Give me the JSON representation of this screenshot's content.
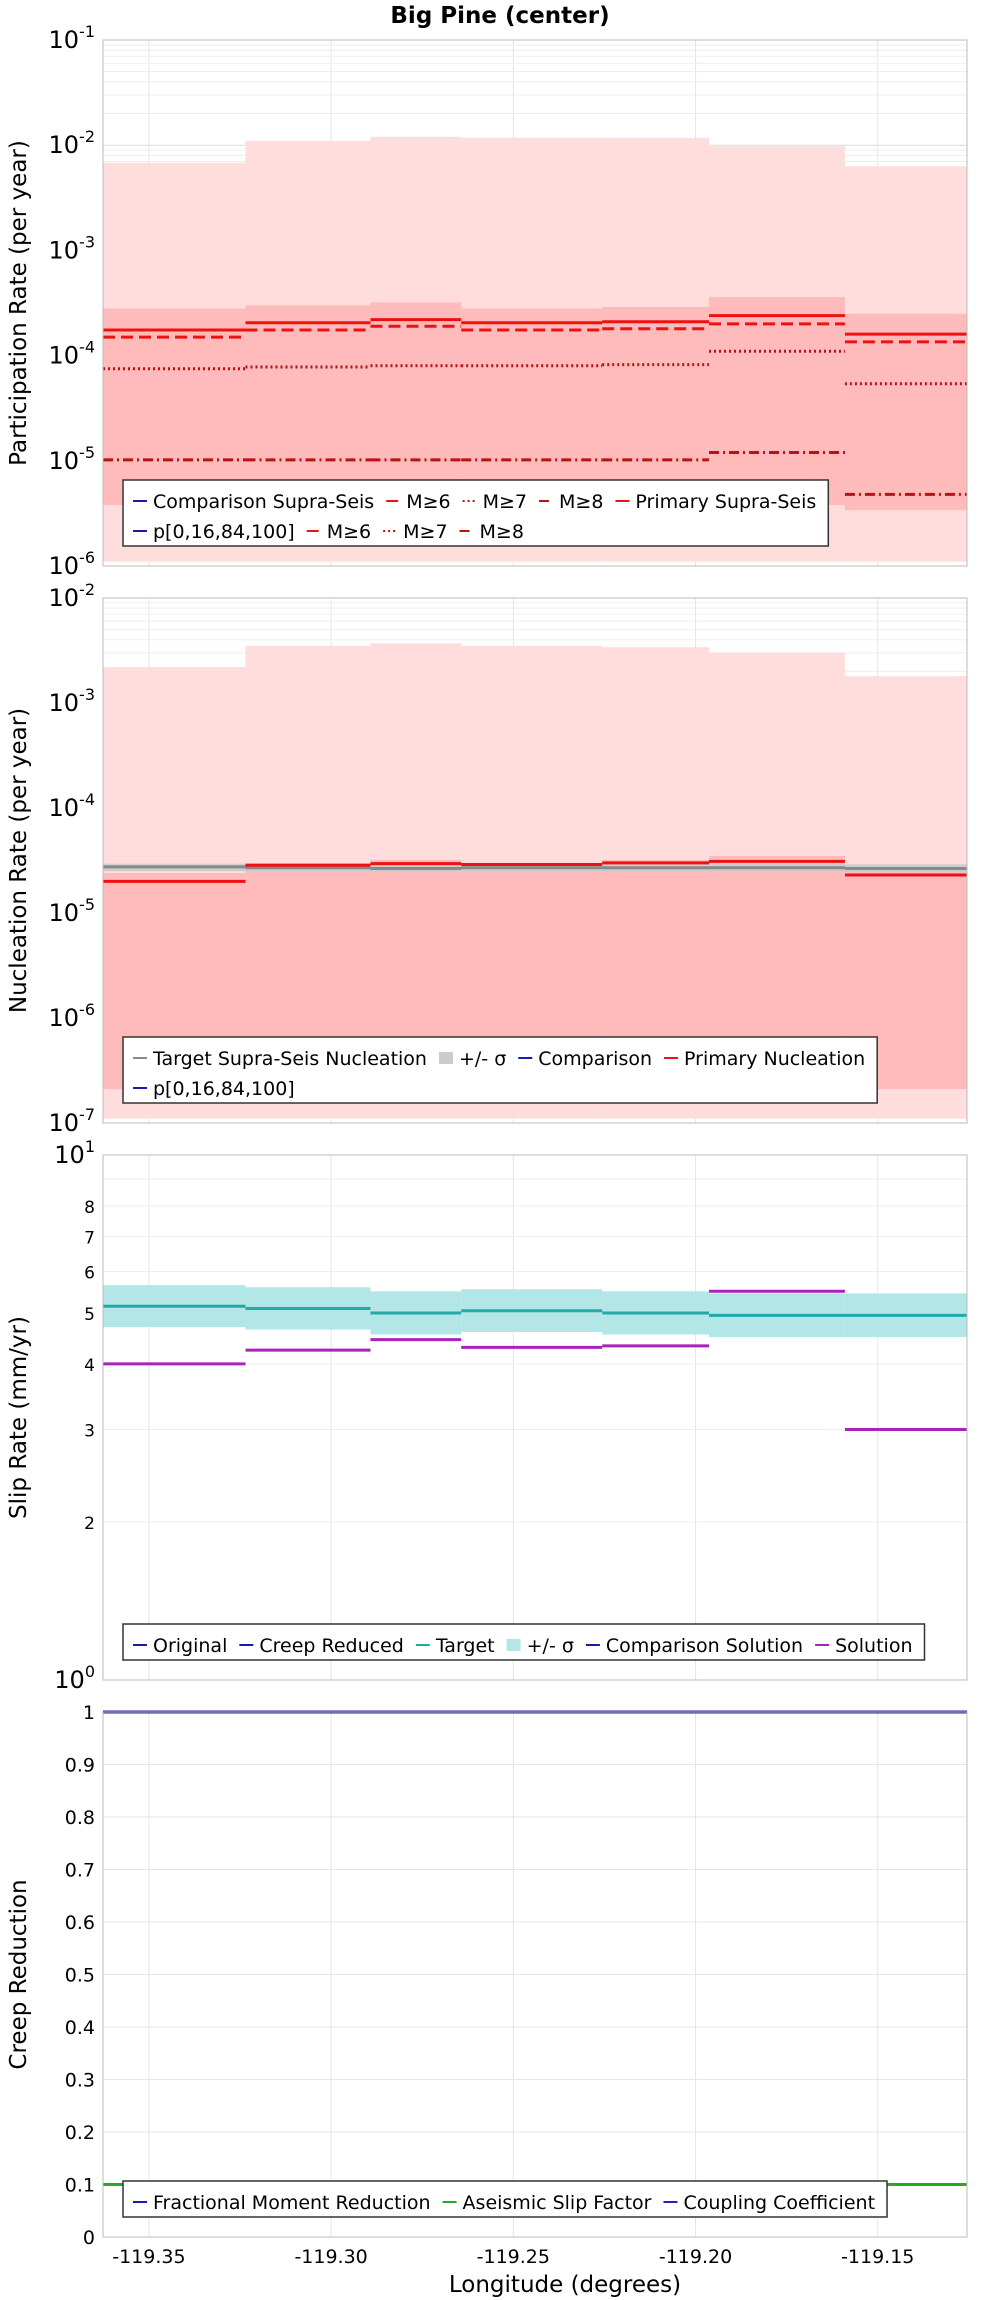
{
  "chart_data": [
    {
      "type": "line",
      "title": "Big Pine (center)",
      "ylabel": "Participation Rate (per year)",
      "yscale": "log",
      "ylim": [
        1e-06,
        0.1
      ],
      "legend": {
        "placement": "bottom-left",
        "rows": [
          [
            "Comparison Supra-Seis",
            "M≥6",
            "M≥7",
            "M≥8",
            "Primary Supra-Seis"
          ],
          [
            "p[0,16,84,100]",
            "M≥6",
            "M≥7",
            "M≥8"
          ]
        ]
      },
      "bands": [
        {
          "name": "p[0,100]",
          "color": "#ffdddd",
          "lo": [
            1.1e-06,
            1.1e-06,
            1.1e-06,
            1.1e-06,
            1.1e-06,
            1.1e-06,
            1.1e-06
          ],
          "hi": [
            0.0068,
            0.011,
            0.012,
            0.0118,
            0.0117,
            0.0098,
            0.0063
          ]
        },
        {
          "name": "p[16,84]",
          "color": "#ffbbbb",
          "lo": [
            3.8e-06,
            3.8e-06,
            3.8e-06,
            3.8e-06,
            3.8e-06,
            3.8e-06,
            3.4e-06
          ],
          "hi": [
            0.00028,
            0.0003,
            0.00032,
            0.00028,
            0.00029,
            0.00036,
            0.00025
          ]
        }
      ],
      "series": [
        {
          "name": "Primary Supra-Seis",
          "style": "solid",
          "color": "#ee1111",
          "values": [
            0.000175,
            0.000205,
            0.00022,
            0.000205,
            0.00021,
            0.00024,
            0.00016
          ]
        },
        {
          "name": "M≥6",
          "style": "dash",
          "color": "#ee1111",
          "values": [
            0.00015,
            0.000175,
            0.00019,
            0.000175,
            0.00018,
            0.0002,
            0.000135
          ]
        },
        {
          "name": "M≥7",
          "style": "dot",
          "color": "#bb1111",
          "values": [
            7.5e-05,
            7.8e-05,
            8e-05,
            8e-05,
            8.2e-05,
            0.00011,
            5.4e-05
          ]
        },
        {
          "name": "M≥8",
          "style": "dashdot",
          "color": "#bb1111",
          "values": [
            1.02e-05,
            1.02e-05,
            1.02e-05,
            1.02e-05,
            1.02e-05,
            1.2e-05,
            4.8e-06
          ]
        }
      ],
      "yticks": [
        {
          "base": "10",
          "exp": "-6"
        },
        {
          "base": "10",
          "exp": "-5"
        },
        {
          "base": "10",
          "exp": "-4"
        },
        {
          "base": "10",
          "exp": "-3"
        },
        {
          "base": "10",
          "exp": "-2"
        },
        {
          "base": "10",
          "exp": "-1"
        }
      ]
    },
    {
      "type": "line",
      "ylabel": "Nucleation Rate (per year)",
      "yscale": "log",
      "ylim": [
        1e-07,
        0.01
      ],
      "legend": {
        "placement": "bottom-left",
        "rows": [
          [
            "Target Supra-Seis Nucleation",
            "+/- σ",
            "Comparison",
            "Primary Nucleation"
          ],
          [
            "p[0,16,84,100]"
          ]
        ]
      },
      "bands": [
        {
          "name": "p[0,100]",
          "color": "#ffdddd",
          "lo": [
            1.1e-07,
            1.1e-07,
            1.1e-07,
            1.1e-07,
            1.1e-07,
            1.1e-07,
            1.1e-07
          ],
          "hi": [
            0.0022,
            0.0035,
            0.0037,
            0.0035,
            0.0034,
            0.003,
            0.0018
          ]
        },
        {
          "name": "p[16,84]",
          "color": "#ffbbbb",
          "lo": [
            2.1e-07,
            2.1e-07,
            2.1e-07,
            2.1e-07,
            2.1e-07,
            2.1e-07,
            2.1e-07
          ],
          "hi": [
            2.4e-05,
            3e-05,
            3.2e-05,
            3e-05,
            3.2e-05,
            3.5e-05,
            2.6e-05
          ]
        },
        {
          "name": "+/- σ",
          "color": "#cccccc",
          "lo": [
            2.5e-05,
            2.5e-05,
            2.45e-05,
            2.5e-05,
            2.5e-05,
            2.5e-05,
            2.45e-05
          ],
          "hi": [
            2.95e-05,
            2.95e-05,
            2.9e-05,
            2.95e-05,
            2.95e-05,
            2.95e-05,
            2.9e-05
          ]
        }
      ],
      "series": [
        {
          "name": "Target Supra-Seis Nucleation",
          "style": "solid",
          "color": "#888888",
          "values": [
            2.75e-05,
            2.7e-05,
            2.65e-05,
            2.7e-05,
            2.7e-05,
            2.7e-05,
            2.65e-05
          ]
        },
        {
          "name": "Primary Nucleation",
          "style": "solid",
          "color": "#ee1111",
          "values": [
            2e-05,
            2.85e-05,
            2.95e-05,
            2.9e-05,
            3e-05,
            3.1e-05,
            2.3e-05
          ]
        }
      ],
      "yticks": [
        {
          "base": "10",
          "exp": "-7"
        },
        {
          "base": "10",
          "exp": "-6"
        },
        {
          "base": "10",
          "exp": "-5"
        },
        {
          "base": "10",
          "exp": "-4"
        },
        {
          "base": "10",
          "exp": "-3"
        },
        {
          "base": "10",
          "exp": "-2"
        }
      ]
    },
    {
      "type": "line",
      "ylabel": "Slip Rate (mm/yr)",
      "yscale": "log",
      "ylim": [
        1,
        10
      ],
      "legend": {
        "placement": "bottom-left",
        "rows": [
          [
            "Original",
            "Creep Reduced",
            "Target",
            "+/- σ",
            "Comparison Solution",
            "Solution"
          ]
        ]
      },
      "bands": [
        {
          "name": "+/- σ",
          "color": "#b3e6e6",
          "lo": [
            4.7,
            4.65,
            4.55,
            4.6,
            4.55,
            4.5,
            4.5
          ],
          "hi": [
            5.65,
            5.6,
            5.5,
            5.55,
            5.5,
            5.45,
            5.45
          ]
        }
      ],
      "series": [
        {
          "name": "Target",
          "style": "solid",
          "color": "#22aaaa",
          "values": [
            5.15,
            5.1,
            5.0,
            5.05,
            5.0,
            4.95,
            4.95
          ]
        },
        {
          "name": "Solution",
          "style": "solid",
          "color": "#aa22bb",
          "values": [
            4.0,
            4.25,
            4.45,
            4.3,
            4.33,
            5.5,
            3.0
          ]
        }
      ],
      "yticks": [
        {
          "base": "10",
          "exp": "0"
        },
        {
          "base": "",
          "exp": "",
          "label": "2"
        },
        {
          "base": "",
          "exp": "",
          "label": "3"
        },
        {
          "base": "",
          "exp": "",
          "label": "4"
        },
        {
          "base": "",
          "exp": "",
          "label": "5"
        },
        {
          "base": "",
          "exp": "",
          "label": "6"
        },
        {
          "base": "",
          "exp": "",
          "label": "7"
        },
        {
          "base": "",
          "exp": "",
          "label": "8"
        },
        {
          "base": "10",
          "exp": "1"
        }
      ]
    },
    {
      "type": "line",
      "ylabel": "Creep Reduction",
      "xlabel": "Longitude (degrees)",
      "ylim": [
        0,
        1
      ],
      "legend": {
        "placement": "bottom-left",
        "rows": [
          [
            "Fractional Moment Reduction",
            "Aseismic Slip Factor",
            "Coupling Coefficient"
          ]
        ]
      },
      "series": [
        {
          "name": "Aseismic Slip Factor",
          "style": "solid",
          "color": "#22aa22",
          "values": [
            0.1,
            0.1,
            0.1,
            0.1,
            0.1,
            0.1,
            0.1
          ]
        },
        {
          "name": "Coupling Coefficient",
          "style": "solid",
          "color": "#2222aa",
          "values": [
            1,
            1,
            1,
            1,
            1,
            1,
            1
          ]
        }
      ],
      "yticks": [
        "0",
        "0.1",
        "0.2",
        "0.3",
        "0.4",
        "0.5",
        "0.6",
        "0.7",
        "0.8",
        "0.9",
        "1"
      ]
    }
  ],
  "x": {
    "edges": [
      -119.3626,
      -119.3235,
      -119.2892,
      -119.2643,
      -119.2256,
      -119.1963,
      -119.159,
      -119.1255
    ],
    "xlim": [
      -119.3626,
      -119.1255
    ],
    "ticks": [
      {
        "v": -119.35,
        "label": "-119.35"
      },
      {
        "v": -119.3,
        "label": "-119.30"
      },
      {
        "v": -119.25,
        "label": "-119.25"
      },
      {
        "v": -119.2,
        "label": "-119.20"
      },
      {
        "v": -119.15,
        "label": "-119.15"
      }
    ]
  }
}
